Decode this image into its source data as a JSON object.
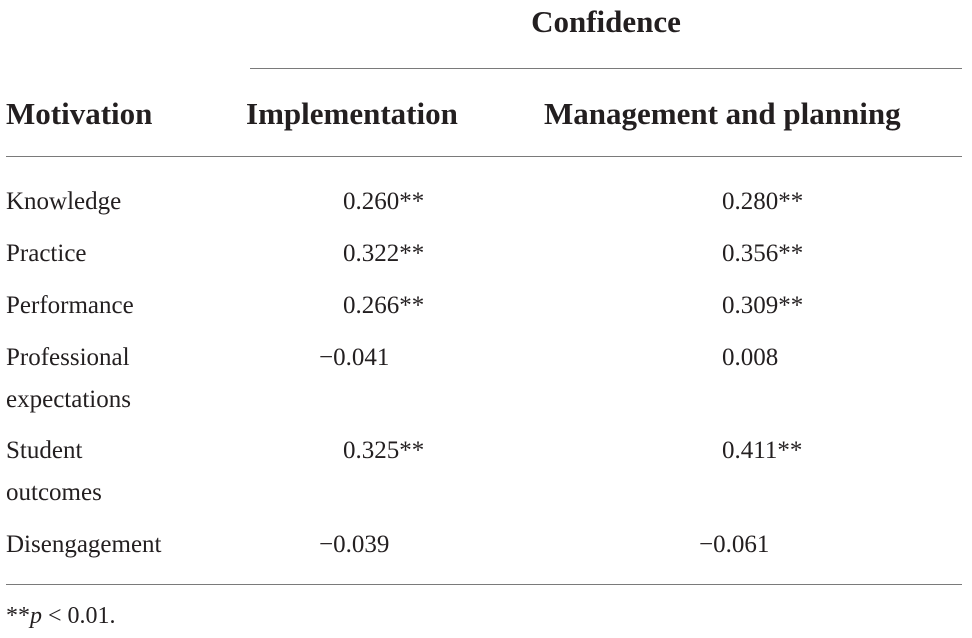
{
  "table": {
    "group_header": "Confidence",
    "columns": {
      "motivation": "Motivation",
      "implementation": "Implementation",
      "management": "Management and planning"
    },
    "rows": [
      {
        "label_line1": "Knowledge",
        "label_line2": "",
        "implementation": "0.260**",
        "management": "0.280**"
      },
      {
        "label_line1": "Practice",
        "label_line2": "",
        "implementation": "0.322**",
        "management": "0.356**"
      },
      {
        "label_line1": "Performance",
        "label_line2": "",
        "implementation": "0.266**",
        "management": "0.309**"
      },
      {
        "label_line1": "Professional",
        "label_line2": "expectations",
        "implementation": "−0.041",
        "management": "0.008"
      },
      {
        "label_line1": "Student",
        "label_line2": "outcomes",
        "implementation": "0.325**",
        "management": "0.411**"
      },
      {
        "label_line1": "Disengagement",
        "label_line2": "",
        "implementation": "−0.039",
        "management": "−0.061"
      }
    ]
  },
  "footnote": {
    "stars": "**",
    "p_symbol": "p",
    "rest": " < 0.01."
  }
}
